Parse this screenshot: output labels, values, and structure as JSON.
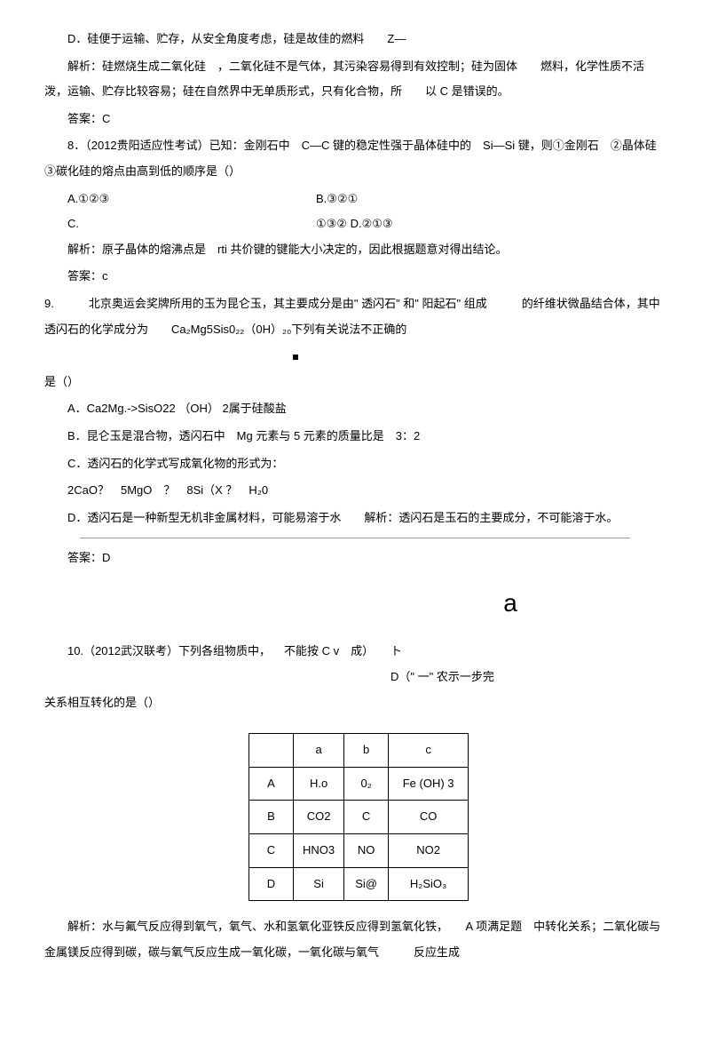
{
  "q7": {
    "optD": "D．硅便于运输、贮存，从安全角度考虑，硅是故佳的燃料　　Z—",
    "analysis": "解析：硅燃烧生成二氧化硅　，二氧化硅不是气体，其污染容易得到有效控制；硅为固体　　燃料，化学性质不活泼，运输、贮存比较容易；硅在自然界中无单质形式，只有化合物，所　　以 C 是错误的。",
    "answer": "答案：C"
  },
  "q8": {
    "stem": "8．（2012贵阳适应性考试）已知：金刚石中　C—C 键的稳定性强于晶体硅中的　Si—Si 键，则①金刚石　②晶体硅　③碳化硅的熔点由高到低的顺序是（）",
    "optA": "A.①②③",
    "optB": "B.③②①",
    "optC1": "C.",
    "optC2": "①③② D.②①③",
    "analysis": "解析：原子晶体的熔沸点是　rti 共价键的键能大小决定的，因此根据题意对得出结论。",
    "answer": "答案：c"
  },
  "q9": {
    "stem1": "9.　　　北京奥运会奖牌所用的玉为昆仑玉，其主要成分是由\" 透闪石\" 和\" 阳起石\" 组成　　　的纤维状微晶结合体，其中透闪石的化学成分为　　Ca₂Mg5Sis0₂₂（0H）₂₀下列有关说法不正确的",
    "stem2": "是（）",
    "optA": "A．Ca2Mg.->SisO22 （OH） 2属于硅酸盐",
    "optB": "B．昆仑玉是混合物，透闪石中　Mg 元素与 5 元素的质量比是　3：2",
    "optC": "C．透闪石的化学式写成氧化物的形式为：",
    "formula": "2CaO？　5MgO　？　8Si（X ？　H₂0",
    "optD": "D．透闪石是一种新型无机非金属材料，可能易溶于水　　解析：透闪石是玉石的主要成分，不可能溶于水。",
    "answer": "答案：D"
  },
  "bigA": "a",
  "q10": {
    "stemLeft": "10.（2012武汉联考）下列各组物质中，",
    "stemMid": "不能按 C v　成）",
    "stemRight1": "ト",
    "stemRight2": "D（\" 一\" 农示一步完",
    "stem2": "关系相互转化的是（）"
  },
  "table": {
    "headers": [
      "",
      "a",
      "b",
      "c"
    ],
    "rows": [
      [
        "A",
        "H.o",
        "0₂",
        "Fe (OH) 3"
      ],
      [
        "B",
        "CO2",
        "C",
        "CO"
      ],
      [
        "C",
        "HNO3",
        "NO",
        "NO2"
      ],
      [
        "D",
        "Si",
        "Si@",
        "H₂SiO₃"
      ]
    ]
  },
  "q10Analysis": "解析：水与氟气反应得到氧气，氧气、水和氢氧化亚铁反应得到氢氧化铁，　　A 项满足题　中转化关系；二氧化碳与金属镁反应得到碳，碳与氧气反应生成一氧化碳，一氧化碳与氧气　　　反应生成"
}
